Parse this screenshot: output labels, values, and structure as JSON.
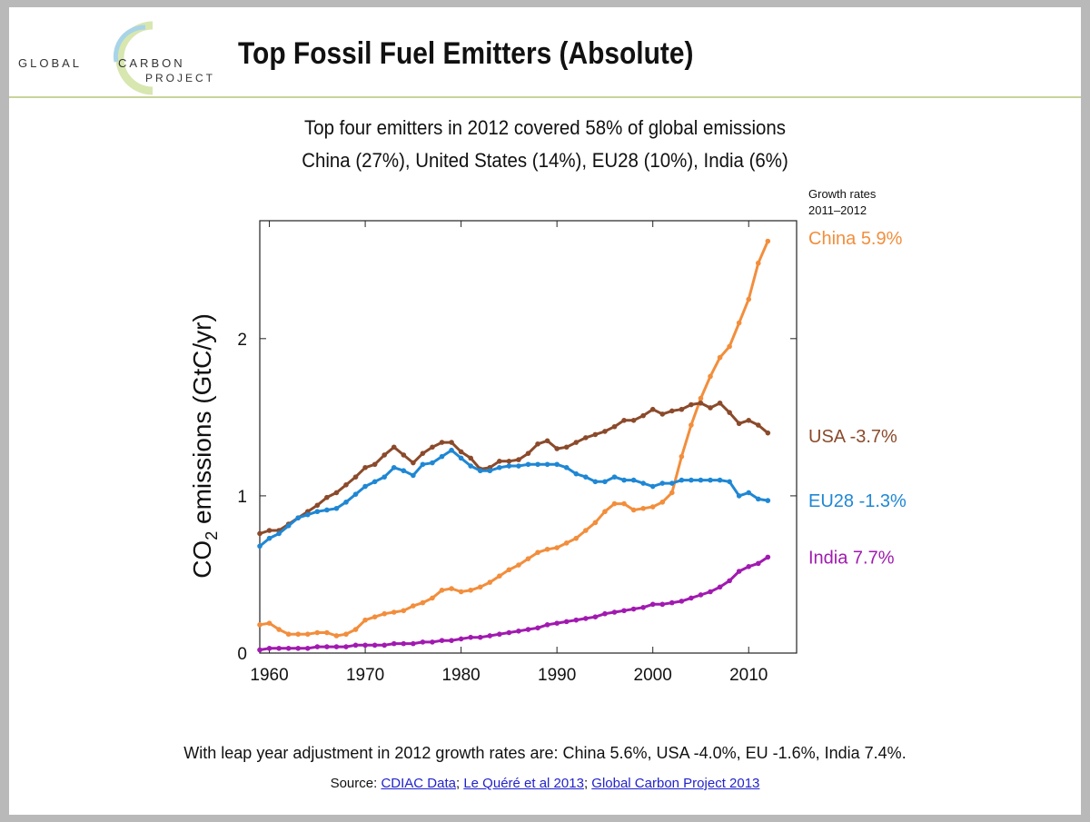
{
  "header": {
    "logo_line1": "GLOBAL",
    "logo_line2": "CARBON",
    "logo_line3": "PROJECT",
    "title": "Top Fossil Fuel Emitters (Absolute)"
  },
  "subtitle": {
    "line1": "Top four emitters in 2012 covered 58% of global emissions",
    "line2": "China (27%), United States (14%), EU28 (10%), India (6%)"
  },
  "legend_header": {
    "line1": "Growth rates",
    "line2": "2011–2012"
  },
  "footer": {
    "note": "With leap year adjustment in 2012 growth rates are: China 5.6%, USA -4.0%, EU -1.6%, India 7.4%.",
    "source_prefix": "Source:",
    "links": [
      "CDIAC Data",
      "Le Quéré et al 2013",
      "Global Carbon Project 2013"
    ]
  },
  "colors": {
    "china": "#f28e3c",
    "usa": "#8b4a2b",
    "eu28": "#1f87d4",
    "india": "#a11ab0"
  },
  "chart_data": {
    "type": "line",
    "ylabel_main": "CO",
    "ylabel_sub": "2",
    "ylabel_rest": " emissions (GtC/yr)",
    "xlim": [
      1959,
      2015
    ],
    "ylim": [
      0,
      2.75
    ],
    "xticks": [
      1960,
      1970,
      1980,
      1990,
      2000,
      2010
    ],
    "yticks": [
      0,
      1,
      2
    ],
    "ytick_labels": [
      "0",
      "1",
      "2"
    ],
    "grid": false,
    "series": [
      {
        "name": "China",
        "label": "China 5.9%",
        "color": "#f28e3c",
        "x": [
          1959,
          1960,
          1961,
          1962,
          1963,
          1964,
          1965,
          1966,
          1967,
          1968,
          1969,
          1970,
          1971,
          1972,
          1973,
          1974,
          1975,
          1976,
          1977,
          1978,
          1979,
          1980,
          1981,
          1982,
          1983,
          1984,
          1985,
          1986,
          1987,
          1988,
          1989,
          1990,
          1991,
          1992,
          1993,
          1994,
          1995,
          1996,
          1997,
          1998,
          1999,
          2000,
          2001,
          2002,
          2003,
          2004,
          2005,
          2006,
          2007,
          2008,
          2009,
          2010,
          2011,
          2012
        ],
        "y": [
          0.18,
          0.19,
          0.15,
          0.12,
          0.12,
          0.12,
          0.13,
          0.13,
          0.11,
          0.12,
          0.15,
          0.21,
          0.23,
          0.25,
          0.26,
          0.27,
          0.3,
          0.32,
          0.35,
          0.4,
          0.41,
          0.39,
          0.4,
          0.42,
          0.45,
          0.49,
          0.53,
          0.56,
          0.6,
          0.64,
          0.66,
          0.67,
          0.7,
          0.73,
          0.78,
          0.83,
          0.9,
          0.95,
          0.95,
          0.91,
          0.92,
          0.93,
          0.96,
          1.02,
          1.25,
          1.45,
          1.62,
          1.76,
          1.88,
          1.95,
          2.1,
          2.25,
          2.48,
          2.62
        ]
      },
      {
        "name": "USA",
        "label": "USA -3.7%",
        "color": "#8b4a2b",
        "x": [
          1959,
          1960,
          1961,
          1962,
          1963,
          1964,
          1965,
          1966,
          1967,
          1968,
          1969,
          1970,
          1971,
          1972,
          1973,
          1974,
          1975,
          1976,
          1977,
          1978,
          1979,
          1980,
          1981,
          1982,
          1983,
          1984,
          1985,
          1986,
          1987,
          1988,
          1989,
          1990,
          1991,
          1992,
          1993,
          1994,
          1995,
          1996,
          1997,
          1998,
          1999,
          2000,
          2001,
          2002,
          2003,
          2004,
          2005,
          2006,
          2007,
          2008,
          2009,
          2010,
          2011,
          2012
        ],
        "y": [
          0.76,
          0.78,
          0.78,
          0.82,
          0.86,
          0.9,
          0.94,
          0.99,
          1.02,
          1.07,
          1.12,
          1.18,
          1.2,
          1.26,
          1.31,
          1.26,
          1.21,
          1.27,
          1.31,
          1.34,
          1.34,
          1.28,
          1.24,
          1.17,
          1.18,
          1.22,
          1.22,
          1.23,
          1.27,
          1.33,
          1.35,
          1.3,
          1.31,
          1.34,
          1.37,
          1.39,
          1.41,
          1.44,
          1.48,
          1.48,
          1.51,
          1.55,
          1.52,
          1.54,
          1.55,
          1.58,
          1.59,
          1.56,
          1.59,
          1.53,
          1.46,
          1.48,
          1.45,
          1.4
        ]
      },
      {
        "name": "EU28",
        "label": "EU28 -1.3%",
        "color": "#1f87d4",
        "x": [
          1959,
          1960,
          1961,
          1962,
          1963,
          1964,
          1965,
          1966,
          1967,
          1968,
          1969,
          1970,
          1971,
          1972,
          1973,
          1974,
          1975,
          1976,
          1977,
          1978,
          1979,
          1980,
          1981,
          1982,
          1983,
          1984,
          1985,
          1986,
          1987,
          1988,
          1989,
          1990,
          1991,
          1992,
          1993,
          1994,
          1995,
          1996,
          1997,
          1998,
          1999,
          2000,
          2001,
          2002,
          2003,
          2004,
          2005,
          2006,
          2007,
          2008,
          2009,
          2010,
          2011,
          2012
        ],
        "y": [
          0.68,
          0.73,
          0.76,
          0.81,
          0.86,
          0.88,
          0.9,
          0.91,
          0.92,
          0.96,
          1.01,
          1.06,
          1.09,
          1.12,
          1.18,
          1.16,
          1.13,
          1.2,
          1.21,
          1.25,
          1.29,
          1.24,
          1.19,
          1.16,
          1.16,
          1.18,
          1.19,
          1.19,
          1.2,
          1.2,
          1.2,
          1.2,
          1.18,
          1.14,
          1.12,
          1.09,
          1.09,
          1.12,
          1.1,
          1.1,
          1.08,
          1.06,
          1.08,
          1.08,
          1.1,
          1.1,
          1.1,
          1.1,
          1.1,
          1.09,
          1.0,
          1.02,
          0.98,
          0.97
        ]
      },
      {
        "name": "India",
        "label": "India 7.7%",
        "color": "#a11ab0",
        "x": [
          1959,
          1960,
          1961,
          1962,
          1963,
          1964,
          1965,
          1966,
          1967,
          1968,
          1969,
          1970,
          1971,
          1972,
          1973,
          1974,
          1975,
          1976,
          1977,
          1978,
          1979,
          1980,
          1981,
          1982,
          1983,
          1984,
          1985,
          1986,
          1987,
          1988,
          1989,
          1990,
          1991,
          1992,
          1993,
          1994,
          1995,
          1996,
          1997,
          1998,
          1999,
          2000,
          2001,
          2002,
          2003,
          2004,
          2005,
          2006,
          2007,
          2008,
          2009,
          2010,
          2011,
          2012
        ],
        "y": [
          0.02,
          0.03,
          0.03,
          0.03,
          0.03,
          0.03,
          0.04,
          0.04,
          0.04,
          0.04,
          0.05,
          0.05,
          0.05,
          0.05,
          0.06,
          0.06,
          0.06,
          0.07,
          0.07,
          0.08,
          0.08,
          0.09,
          0.1,
          0.1,
          0.11,
          0.12,
          0.13,
          0.14,
          0.15,
          0.16,
          0.18,
          0.19,
          0.2,
          0.21,
          0.22,
          0.23,
          0.25,
          0.26,
          0.27,
          0.28,
          0.29,
          0.31,
          0.31,
          0.32,
          0.33,
          0.35,
          0.37,
          0.39,
          0.42,
          0.46,
          0.52,
          0.55,
          0.57,
          0.61
        ]
      }
    ]
  }
}
